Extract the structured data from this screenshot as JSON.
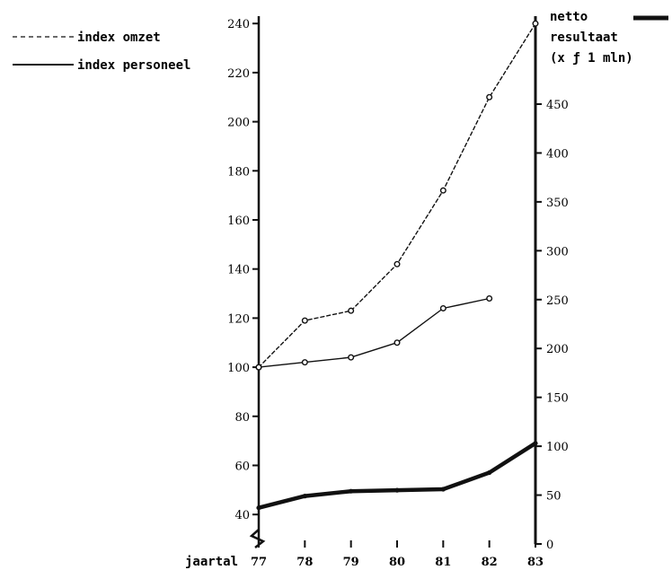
{
  "chart_data": {
    "type": "line",
    "title": "",
    "xlabel": "jaartal",
    "categories": [
      "77",
      "78",
      "79",
      "80",
      "81",
      "82",
      "83"
    ],
    "left_axis": {
      "ylim": [
        28,
        243
      ],
      "ticks": [
        "40",
        "60",
        "80",
        "100",
        "120",
        "140",
        "160",
        "180",
        "200",
        "220",
        "240"
      ]
    },
    "right_axis": {
      "label_lines": [
        "netto",
        "resultaat",
        "(x ƒ 1 mln)"
      ],
      "ylim": [
        0,
        540
      ],
      "ticks": [
        "0",
        "50",
        "100",
        "150",
        "200",
        "250",
        "300",
        "350",
        "400",
        "450"
      ]
    },
    "series": [
      {
        "name": "index omzet",
        "axis": "left",
        "style": "dashed",
        "color": "#111111",
        "values": [
          100,
          119,
          123,
          142,
          172,
          210,
          240
        ]
      },
      {
        "name": "index personeel",
        "axis": "left",
        "style": "solid",
        "color": "#111111",
        "values": [
          100,
          102,
          104,
          110,
          124,
          128,
          null
        ]
      },
      {
        "name": "netto resultaat",
        "axis": "right",
        "style": "bold",
        "color": "#111111",
        "values": [
          37,
          49,
          54,
          55,
          56,
          73,
          103
        ]
      }
    ],
    "legend": {
      "placement": "top-left",
      "entries": [
        "index omzet",
        "index personeel"
      ]
    },
    "grid": false
  }
}
